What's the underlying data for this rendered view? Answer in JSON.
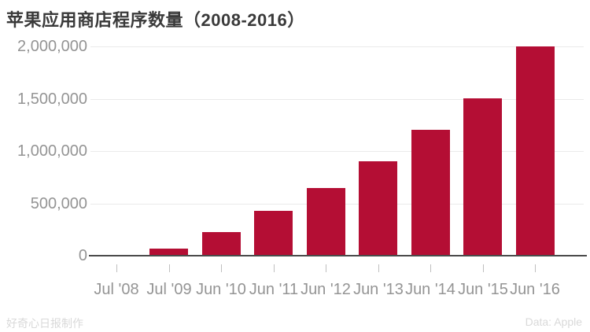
{
  "title": "苹果应用商店程序数量（2008-2016）",
  "footer": {
    "credit": "好奇心日报制作",
    "source": "Data: Apple"
  },
  "colors": {
    "background": "#FFFFFF",
    "bar": "#B40E34",
    "title_text": "#3A3A3A",
    "axis_label_text": "#949494",
    "gridline": "#EAEAEA",
    "axis_line": "#4A4A4A",
    "tick_mark": "#BFBFBF",
    "footer_text": "#D9D9D9"
  },
  "chart_data": {
    "type": "bar",
    "title": "苹果应用商店程序数量（2008-2016）",
    "categories": [
      "Jul '08",
      "Jul '09",
      "Jun '10",
      "Jun '11",
      "Jun '12",
      "Jun '13",
      "Jun '14",
      "Jun '15",
      "Jun '16"
    ],
    "values": [
      0,
      65000,
      225000,
      425000,
      650000,
      900000,
      1200000,
      1500000,
      2000000
    ],
    "xlabel": "",
    "ylabel": "",
    "ylim": [
      0,
      2000000
    ],
    "yticks": [
      0,
      500000,
      1000000,
      1500000,
      2000000
    ],
    "ytick_labels": [
      "0",
      "500,000",
      "1,000,000",
      "1,500,000",
      "2,000,000"
    ],
    "grid": "horizontal",
    "legend": "none"
  }
}
